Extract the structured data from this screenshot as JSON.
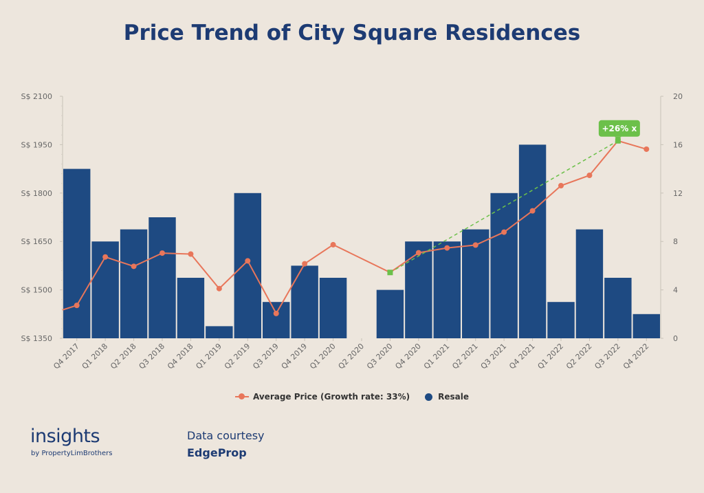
{
  "title": "Price Trend of City Square Residences",
  "legend": {
    "line_label": "Average Price (Growth rate: 33%)",
    "bar_label": "Resale"
  },
  "brand": {
    "name": "insights",
    "sub": "by PropertyLimBrothers"
  },
  "courtesy": {
    "label": "Data courtesy",
    "source": "EdgeProp"
  },
  "colors": {
    "bar": "#1e4a82",
    "line": "#e8765a",
    "highlight": "#6cc04a",
    "title": "#1d3b73",
    "background": "#ede6dd"
  },
  "chart_data": {
    "type": "bar",
    "title": "Price Trend of City Square Residences",
    "categories": [
      "Q4 2017",
      "Q1 2018",
      "Q2 2018",
      "Q3 2018",
      "Q4 2018",
      "Q1 2019",
      "Q2 2019",
      "Q3 2019",
      "Q4 2019",
      "Q1 2020",
      "Q2 2020",
      "Q3 2020",
      "Q4 2020",
      "Q1 2021",
      "Q2 2021",
      "Q3 2021",
      "Q4 2021",
      "Q1 2022",
      "Q2 2022",
      "Q3 2022",
      "Q4 2022"
    ],
    "y_left": {
      "ticks": [
        "S$ 1350",
        "S$ 1500",
        "S$ 1650",
        "S$ 1800",
        "S$ 1950",
        "S$ 2100"
      ],
      "range": [
        1350,
        2100
      ]
    },
    "y_right": {
      "ticks": [
        "0",
        "4",
        "8",
        "12",
        "16",
        "20"
      ],
      "range": [
        0,
        20
      ]
    },
    "series": [
      {
        "name": "Resale",
        "type": "bar",
        "axis": "right",
        "values": [
          14,
          8,
          9,
          10,
          5,
          1,
          12,
          3,
          6,
          5,
          0,
          4,
          8,
          8,
          9,
          12,
          16,
          3,
          9,
          5,
          2
        ]
      },
      {
        "name": "Average Price (Growth rate: 33%)",
        "type": "line",
        "axis": "left",
        "start_value": 1438,
        "values": [
          1452,
          1602,
          1573,
          1614,
          1611,
          1504,
          1590,
          1427,
          1581,
          1640,
          null,
          1554,
          1615,
          1630,
          1639,
          1679,
          1745,
          1823,
          1855,
          1962,
          1936
        ]
      }
    ],
    "annotation": {
      "label": "+26% x",
      "from_category": "Q3 2020",
      "to_category": "Q3 2022",
      "style": "dashed"
    },
    "grid": false,
    "legend_position": "bottom-center"
  }
}
